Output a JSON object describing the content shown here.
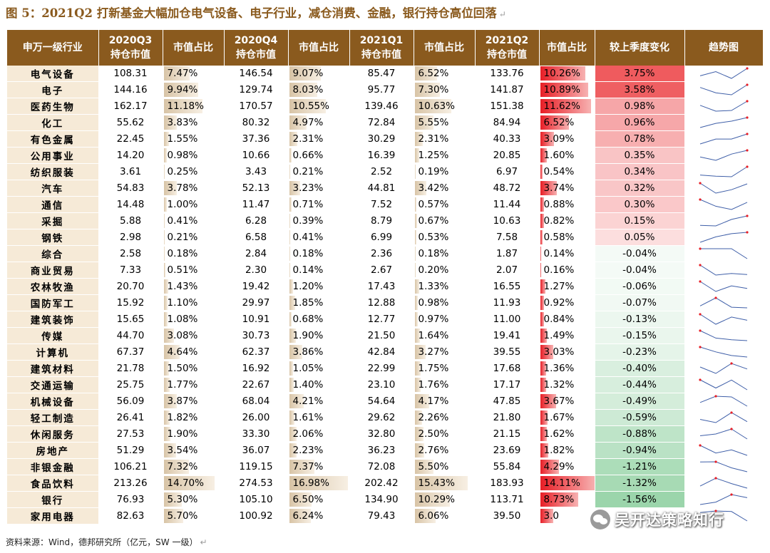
{
  "title": "图 5：2021Q2 打新基金大幅加仓电气设备、电子行业，减仓消费、金融，银行持仓高位回落",
  "return_mark": "↵",
  "headers": [
    [
      "申万一级行业"
    ],
    [
      "2020Q3",
      "持仓市值"
    ],
    [
      "市值占比"
    ],
    [
      "2020Q4",
      "持仓市值"
    ],
    [
      "市值占比"
    ],
    [
      "2021Q1",
      "持仓市值"
    ],
    [
      "市值占比"
    ],
    [
      "2021Q2",
      "持仓市值"
    ],
    [
      "市值占比"
    ],
    [
      "较上季度变化"
    ],
    [
      "趋势图"
    ]
  ],
  "colors": {
    "header_bg": "#8a5a1e",
    "industry_bg": "#f6ead7",
    "increase": "#ef5b5e",
    "decrease": "#63be7b",
    "q2_bar": "#e81e26",
    "sparkline": "#3f5fa8",
    "sparkline_marker": "#e81e26"
  },
  "rows": [
    {
      "industry": "电气设备",
      "q3_val": "108.31",
      "q3_pct": "7.47%",
      "q4_val": "146.54",
      "q4_pct": "9.07%",
      "q1_val": "85.47",
      "q1_pct": "6.52%",
      "q2_val": "133.76",
      "q2_pct": "10.26%",
      "change": "3.75%"
    },
    {
      "industry": "电子",
      "q3_val": "144.16",
      "q3_pct": "9.94%",
      "q4_val": "129.74",
      "q4_pct": "8.03%",
      "q1_val": "95.77",
      "q1_pct": "7.30%",
      "q2_val": "141.87",
      "q2_pct": "10.89%",
      "change": "3.58%"
    },
    {
      "industry": "医药生物",
      "q3_val": "162.17",
      "q3_pct": "11.18%",
      "q4_val": "170.57",
      "q4_pct": "10.55%",
      "q1_val": "139.46",
      "q1_pct": "10.63%",
      "q2_val": "151.38",
      "q2_pct": "11.62%",
      "change": "0.98%"
    },
    {
      "industry": "化工",
      "q3_val": "55.62",
      "q3_pct": "3.83%",
      "q4_val": "80.32",
      "q4_pct": "4.97%",
      "q1_val": "72.84",
      "q1_pct": "5.55%",
      "q2_val": "84.94",
      "q2_pct": "6.52%",
      "change": "0.96%"
    },
    {
      "industry": "有色金属",
      "q3_val": "22.45",
      "q3_pct": "1.55%",
      "q4_val": "37.36",
      "q4_pct": "2.31%",
      "q1_val": "30.29",
      "q1_pct": "2.31%",
      "q2_val": "40.33",
      "q2_pct": "3.09%",
      "change": "0.78%"
    },
    {
      "industry": "公用事业",
      "q3_val": "14.20",
      "q3_pct": "0.98%",
      "q4_val": "10.66",
      "q4_pct": "0.66%",
      "q1_val": "16.39",
      "q1_pct": "1.25%",
      "q2_val": "20.85",
      "q2_pct": "1.60%",
      "change": "0.35%"
    },
    {
      "industry": "纺织服装",
      "q3_val": "3.61",
      "q3_pct": "0.25%",
      "q4_val": "3.43",
      "q4_pct": "0.21%",
      "q1_val": "2.52",
      "q1_pct": "0.19%",
      "q2_val": "6.97",
      "q2_pct": "0.54%",
      "change": "0.34%"
    },
    {
      "industry": "汽车",
      "q3_val": "54.83",
      "q3_pct": "3.78%",
      "q4_val": "52.13",
      "q4_pct": "3.23%",
      "q1_val": "44.81",
      "q1_pct": "3.42%",
      "q2_val": "48.72",
      "q2_pct": "3.74%",
      "change": "0.32%"
    },
    {
      "industry": "通信",
      "q3_val": "14.48",
      "q3_pct": "1.00%",
      "q4_val": "11.47",
      "q4_pct": "0.71%",
      "q1_val": "7.52",
      "q1_pct": "0.57%",
      "q2_val": "11.44",
      "q2_pct": "0.88%",
      "change": "0.30%"
    },
    {
      "industry": "采掘",
      "q3_val": "5.88",
      "q3_pct": "0.41%",
      "q4_val": "6.28",
      "q4_pct": "0.39%",
      "q1_val": "8.79",
      "q1_pct": "0.67%",
      "q2_val": "10.63",
      "q2_pct": "0.82%",
      "change": "0.15%"
    },
    {
      "industry": "钢铁",
      "q3_val": "2.98",
      "q3_pct": "0.21%",
      "q4_val": "6.58",
      "q4_pct": "0.41%",
      "q1_val": "6.99",
      "q1_pct": "0.53%",
      "q2_val": "7.58",
      "q2_pct": "0.58%",
      "change": "0.05%"
    },
    {
      "industry": "综合",
      "q3_val": "2.58",
      "q3_pct": "0.18%",
      "q4_val": "2.84",
      "q4_pct": "0.18%",
      "q1_val": "2.36",
      "q1_pct": "0.18%",
      "q2_val": "1.87",
      "q2_pct": "0.14%",
      "change": "-0.04%"
    },
    {
      "industry": "商业贸易",
      "q3_val": "7.33",
      "q3_pct": "0.51%",
      "q4_val": "2.30",
      "q4_pct": "0.14%",
      "q1_val": "2.67",
      "q1_pct": "0.20%",
      "q2_val": "2.07",
      "q2_pct": "0.16%",
      "change": "-0.04%"
    },
    {
      "industry": "农林牧渔",
      "q3_val": "20.70",
      "q3_pct": "1.43%",
      "q4_val": "19.42",
      "q4_pct": "1.20%",
      "q1_val": "17.43",
      "q1_pct": "1.33%",
      "q2_val": "16.55",
      "q2_pct": "1.27%",
      "change": "-0.06%"
    },
    {
      "industry": "国防军工",
      "q3_val": "15.92",
      "q3_pct": "1.10%",
      "q4_val": "29.97",
      "q4_pct": "1.85%",
      "q1_val": "12.88",
      "q1_pct": "0.98%",
      "q2_val": "11.93",
      "q2_pct": "0.92%",
      "change": "-0.07%"
    },
    {
      "industry": "建筑装饰",
      "q3_val": "15.65",
      "q3_pct": "1.08%",
      "q4_val": "10.91",
      "q4_pct": "0.68%",
      "q1_val": "12.77",
      "q1_pct": "0.97%",
      "q2_val": "11.00",
      "q2_pct": "0.84%",
      "change": "-0.13%"
    },
    {
      "industry": "传媒",
      "q3_val": "44.70",
      "q3_pct": "3.08%",
      "q4_val": "30.73",
      "q4_pct": "1.90%",
      "q1_val": "21.50",
      "q1_pct": "1.64%",
      "q2_val": "19.41",
      "q2_pct": "1.49%",
      "change": "-0.15%"
    },
    {
      "industry": "计算机",
      "q3_val": "67.37",
      "q3_pct": "4.64%",
      "q4_val": "62.37",
      "q4_pct": "3.86%",
      "q1_val": "42.84",
      "q1_pct": "3.27%",
      "q2_val": "39.55",
      "q2_pct": "3.03%",
      "change": "-0.23%"
    },
    {
      "industry": "建筑材料",
      "q3_val": "21.78",
      "q3_pct": "1.50%",
      "q4_val": "16.92",
      "q4_pct": "1.05%",
      "q1_val": "22.99",
      "q1_pct": "1.75%",
      "q2_val": "17.68",
      "q2_pct": "1.36%",
      "change": "-0.40%"
    },
    {
      "industry": "交通运输",
      "q3_val": "25.75",
      "q3_pct": "1.77%",
      "q4_val": "22.67",
      "q4_pct": "1.40%",
      "q1_val": "23.10",
      "q1_pct": "1.76%",
      "q2_val": "17.17",
      "q2_pct": "1.32%",
      "change": "-0.44%"
    },
    {
      "industry": "机械设备",
      "q3_val": "56.09",
      "q3_pct": "3.87%",
      "q4_val": "68.04",
      "q4_pct": "4.21%",
      "q1_val": "54.64",
      "q1_pct": "4.17%",
      "q2_val": "47.85",
      "q2_pct": "3.67%",
      "change": "-0.49%"
    },
    {
      "industry": "轻工制造",
      "q3_val": "26.41",
      "q3_pct": "1.82%",
      "q4_val": "26.00",
      "q4_pct": "1.61%",
      "q1_val": "29.62",
      "q1_pct": "2.26%",
      "q2_val": "21.80",
      "q2_pct": "1.67%",
      "change": "-0.59%"
    },
    {
      "industry": "休闲服务",
      "q3_val": "27.53",
      "q3_pct": "1.90%",
      "q4_val": "33.30",
      "q4_pct": "2.06%",
      "q1_val": "32.80",
      "q1_pct": "2.50%",
      "q2_val": "21.15",
      "q2_pct": "1.62%",
      "change": "-0.88%"
    },
    {
      "industry": "房地产",
      "q3_val": "51.29",
      "q3_pct": "3.54%",
      "q4_val": "36.07",
      "q4_pct": "2.23%",
      "q1_val": "36.23",
      "q1_pct": "2.76%",
      "q2_val": "23.69",
      "q2_pct": "1.82%",
      "change": "-0.94%"
    },
    {
      "industry": "非银金融",
      "q3_val": "106.21",
      "q3_pct": "7.32%",
      "q4_val": "119.15",
      "q4_pct": "7.37%",
      "q1_val": "72.08",
      "q1_pct": "5.50%",
      "q2_val": "55.84",
      "q2_pct": "4.29%",
      "change": "-1.21%"
    },
    {
      "industry": "食品饮料",
      "q3_val": "213.26",
      "q3_pct": "14.70%",
      "q4_val": "274.53",
      "q4_pct": "16.98%",
      "q1_val": "202.42",
      "q1_pct": "15.43%",
      "q2_val": "183.93",
      "q2_pct": "14.11%",
      "change": "-1.32%"
    },
    {
      "industry": "银行",
      "q3_val": "76.93",
      "q3_pct": "5.30%",
      "q4_val": "105.10",
      "q4_pct": "6.50%",
      "q1_val": "134.90",
      "q1_pct": "10.29%",
      "q2_val": "113.71",
      "q2_pct": "8.73%",
      "change": "-1.56%"
    },
    {
      "industry": "家用电器",
      "q3_val": "82.63",
      "q3_pct": "5.70%",
      "q4_val": "100.92",
      "q4_pct": "6.24%",
      "q1_val": "79.43",
      "q1_pct": "6.06%",
      "q2_val": "39.50",
      "q2_pct": "3.0",
      "change": ""
    }
  ],
  "footer": "资料来源：Wind，德邦研究所（亿元，SW 一级）",
  "watermark": {
    "text": "吴开达策略知行",
    "icon": "wechat-icon"
  }
}
